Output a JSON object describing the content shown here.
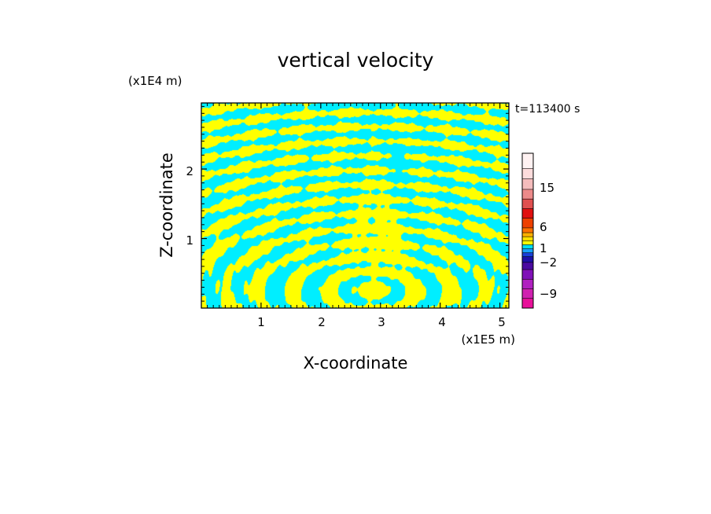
{
  "chart_data": {
    "type": "heatmap",
    "title": "vertical velocity",
    "xlabel": "X-coordinate",
    "ylabel": "Z-coordinate",
    "x_unit": "(x1E5 m)",
    "y_unit": "(x1E4 m)",
    "time_label": "t=113400 s",
    "xlim": [
      0,
      5.15
    ],
    "ylim": [
      0,
      2.95
    ],
    "xticks": [
      "1",
      "2",
      "3",
      "4",
      "5"
    ],
    "yticks": [
      "1",
      "2"
    ],
    "colorbar": {
      "tick_labels": [
        "15",
        "6",
        "1",
        "−2",
        "−9"
      ],
      "levels": [
        -12,
        -10.5,
        -9,
        -7.5,
        -6,
        -4.5,
        -3,
        -2,
        -1,
        0,
        1,
        2,
        3,
        4.5,
        6,
        7.5,
        9,
        12,
        15,
        18,
        22
      ],
      "colors": [
        "#e8109a",
        "#d021b0",
        "#b020c0",
        "#8010b8",
        "#4a0aa0",
        "#1e10a8",
        "#1a40d8",
        "#18a0ff",
        "#00ddee",
        "#ffff00",
        "#ffe000",
        "#ffb000",
        "#ff7000",
        "#ee4000",
        "#e01010",
        "#e05050",
        "#ec8a8a",
        "#f4bcbc",
        "#fcdcdc",
        "#fff2f2"
      ]
    },
    "field_colors": {
      "positive": "#ffff00",
      "negative": "#00eeff"
    },
    "grid": false
  }
}
